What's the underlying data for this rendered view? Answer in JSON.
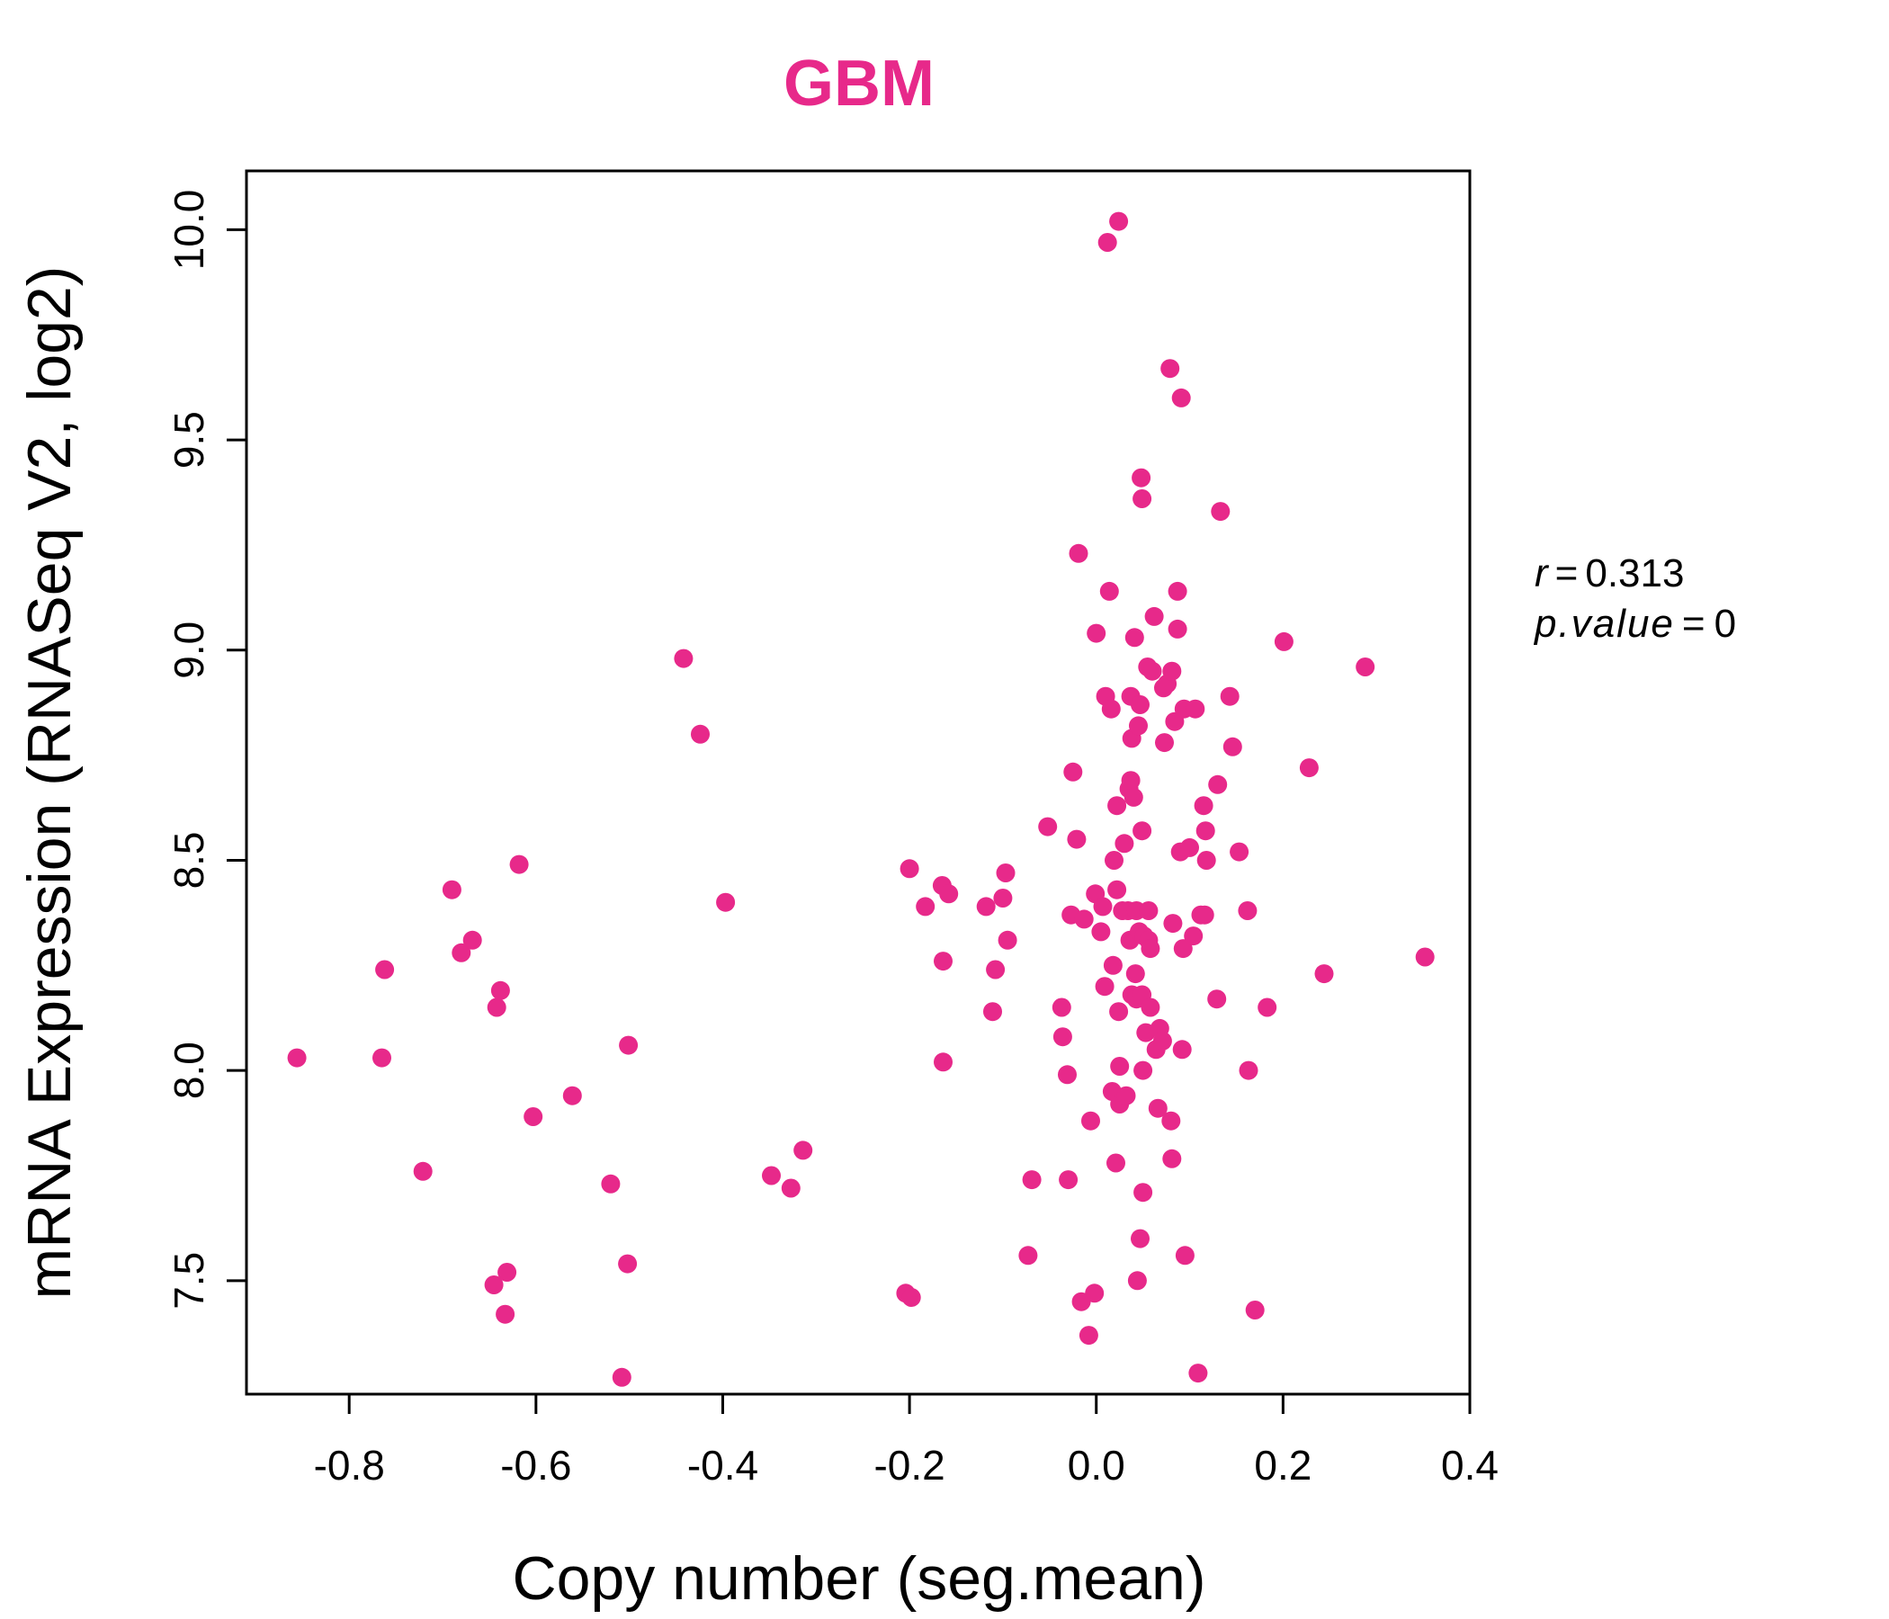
{
  "chart_data": {
    "type": "scatter",
    "title": "GBM",
    "xlabel": "Copy number (seg.mean)",
    "ylabel": "mRNA Expression (RNASeq V2, log2)",
    "xlim": [
      -0.91,
      0.4
    ],
    "ylim": [
      7.23,
      10.14
    ],
    "xticks": [
      -0.8,
      -0.6,
      -0.4,
      -0.2,
      0.0,
      0.2,
      0.4
    ],
    "xtick_labels": [
      "-0.8",
      "-0.6",
      "-0.4",
      "-0.2",
      "0.0",
      "0.2",
      "0.4"
    ],
    "yticks": [
      7.5,
      8.0,
      8.5,
      9.0,
      9.5,
      10.0
    ],
    "ytick_labels": [
      "7.5",
      "8.0",
      "8.5",
      "9.0",
      "9.5",
      "10.0"
    ],
    "grid": false,
    "point_color": "#E7298A",
    "title_color": "#E7298A",
    "annotations": {
      "r_label": "r",
      "r_value": "0.313",
      "p_label": "p.value",
      "p_value": "0",
      "equals": "="
    },
    "points": [
      [
        -0.856,
        8.03
      ],
      [
        -0.765,
        8.03
      ],
      [
        -0.762,
        8.24
      ],
      [
        -0.721,
        7.76
      ],
      [
        -0.69,
        8.43
      ],
      [
        -0.68,
        8.28
      ],
      [
        -0.668,
        8.31
      ],
      [
        -0.645,
        7.49
      ],
      [
        -0.642,
        8.15
      ],
      [
        -0.638,
        8.19
      ],
      [
        -0.633,
        7.42
      ],
      [
        -0.631,
        7.52
      ],
      [
        -0.618,
        8.49
      ],
      [
        -0.603,
        7.89
      ],
      [
        -0.561,
        7.94
      ],
      [
        -0.52,
        7.73
      ],
      [
        -0.508,
        7.27
      ],
      [
        -0.502,
        7.54
      ],
      [
        -0.501,
        8.06
      ],
      [
        -0.442,
        8.98
      ],
      [
        -0.424,
        8.8
      ],
      [
        -0.397,
        8.4
      ],
      [
        -0.348,
        7.75
      ],
      [
        -0.327,
        7.72
      ],
      [
        -0.314,
        7.81
      ],
      [
        -0.204,
        7.47
      ],
      [
        -0.198,
        7.46
      ],
      [
        -0.2,
        8.48
      ],
      [
        -0.183,
        8.39
      ],
      [
        -0.165,
        8.44
      ],
      [
        -0.164,
        8.26
      ],
      [
        -0.158,
        8.42
      ],
      [
        -0.164,
        8.02
      ],
      [
        -0.118,
        8.39
      ],
      [
        -0.111,
        8.14
      ],
      [
        -0.108,
        8.24
      ],
      [
        -0.1,
        8.41
      ],
      [
        -0.097,
        8.47
      ],
      [
        -0.095,
        8.31
      ],
      [
        -0.073,
        7.56
      ],
      [
        -0.069,
        7.74
      ],
      [
        -0.052,
        8.58
      ],
      [
        -0.037,
        8.15
      ],
      [
        -0.036,
        8.08
      ],
      [
        -0.031,
        7.99
      ],
      [
        -0.03,
        7.74
      ],
      [
        -0.027,
        8.37
      ],
      [
        -0.025,
        8.71
      ],
      [
        -0.021,
        8.55
      ],
      [
        -0.019,
        9.23
      ],
      [
        -0.016,
        7.45
      ],
      [
        -0.013,
        8.36
      ],
      [
        -0.008,
        7.37
      ],
      [
        -0.006,
        7.88
      ],
      [
        -0.002,
        7.47
      ],
      [
        0.0,
        9.04
      ],
      [
        -0.001,
        8.42
      ],
      [
        0.005,
        8.33
      ],
      [
        0.007,
        8.39
      ],
      [
        0.009,
        8.2
      ],
      [
        0.01,
        8.89
      ],
      [
        0.012,
        9.97
      ],
      [
        0.014,
        9.14
      ],
      [
        0.016,
        8.86
      ],
      [
        0.017,
        7.95
      ],
      [
        0.018,
        8.25
      ],
      [
        0.019,
        8.5
      ],
      [
        0.021,
        7.78
      ],
      [
        0.022,
        8.63
      ],
      [
        0.022,
        8.43
      ],
      [
        0.024,
        10.02
      ],
      [
        0.024,
        8.14
      ],
      [
        0.025,
        8.01
      ],
      [
        0.025,
        7.92
      ],
      [
        0.028,
        8.38
      ],
      [
        0.03,
        8.54
      ],
      [
        0.032,
        7.94
      ],
      [
        0.034,
        8.38
      ],
      [
        0.035,
        8.67
      ],
      [
        0.036,
        8.31
      ],
      [
        0.037,
        8.89
      ],
      [
        0.037,
        8.69
      ],
      [
        0.038,
        8.79
      ],
      [
        0.038,
        8.18
      ],
      [
        0.04,
        8.65
      ],
      [
        0.041,
        9.03
      ],
      [
        0.042,
        8.23
      ],
      [
        0.043,
        8.38
      ],
      [
        0.043,
        8.17
      ],
      [
        0.044,
        7.5
      ],
      [
        0.045,
        8.82
      ],
      [
        0.046,
        8.33
      ],
      [
        0.047,
        8.87
      ],
      [
        0.047,
        7.6
      ],
      [
        0.048,
        9.41
      ],
      [
        0.049,
        9.36
      ],
      [
        0.049,
        8.57
      ],
      [
        0.049,
        8.18
      ],
      [
        0.05,
        7.71
      ],
      [
        0.05,
        8.0
      ],
      [
        0.051,
        8.32
      ],
      [
        0.053,
        8.09
      ],
      [
        0.055,
        8.96
      ],
      [
        0.056,
        8.38
      ],
      [
        0.056,
        8.31
      ],
      [
        0.058,
        8.15
      ],
      [
        0.058,
        8.29
      ],
      [
        0.06,
        8.95
      ],
      [
        0.062,
        9.08
      ],
      [
        0.064,
        8.05
      ],
      [
        0.066,
        7.91
      ],
      [
        0.068,
        8.1
      ],
      [
        0.071,
        8.07
      ],
      [
        0.072,
        8.91
      ],
      [
        0.073,
        8.78
      ],
      [
        0.076,
        8.92
      ],
      [
        0.079,
        9.67
      ],
      [
        0.08,
        7.88
      ],
      [
        0.081,
        8.95
      ],
      [
        0.081,
        7.79
      ],
      [
        0.082,
        8.35
      ],
      [
        0.084,
        8.83
      ],
      [
        0.087,
        9.14
      ],
      [
        0.087,
        9.05
      ],
      [
        0.09,
        8.52
      ],
      [
        0.091,
        9.6
      ],
      [
        0.092,
        8.05
      ],
      [
        0.093,
        8.29
      ],
      [
        0.094,
        8.86
      ],
      [
        0.095,
        7.56
      ],
      [
        0.1,
        8.53
      ],
      [
        0.104,
        8.32
      ],
      [
        0.106,
        8.86
      ],
      [
        0.109,
        7.28
      ],
      [
        0.112,
        8.37
      ],
      [
        0.115,
        8.63
      ],
      [
        0.116,
        8.37
      ],
      [
        0.117,
        8.57
      ],
      [
        0.118,
        8.5
      ],
      [
        0.129,
        8.17
      ],
      [
        0.13,
        8.68
      ],
      [
        0.133,
        9.33
      ],
      [
        0.143,
        8.89
      ],
      [
        0.146,
        8.77
      ],
      [
        0.153,
        8.52
      ],
      [
        0.162,
        8.38
      ],
      [
        0.163,
        8.0
      ],
      [
        0.17,
        7.43
      ],
      [
        0.183,
        8.15
      ],
      [
        0.201,
        9.02
      ],
      [
        0.228,
        8.72
      ],
      [
        0.244,
        8.23
      ],
      [
        0.288,
        8.96
      ],
      [
        0.352,
        8.27
      ]
    ]
  }
}
